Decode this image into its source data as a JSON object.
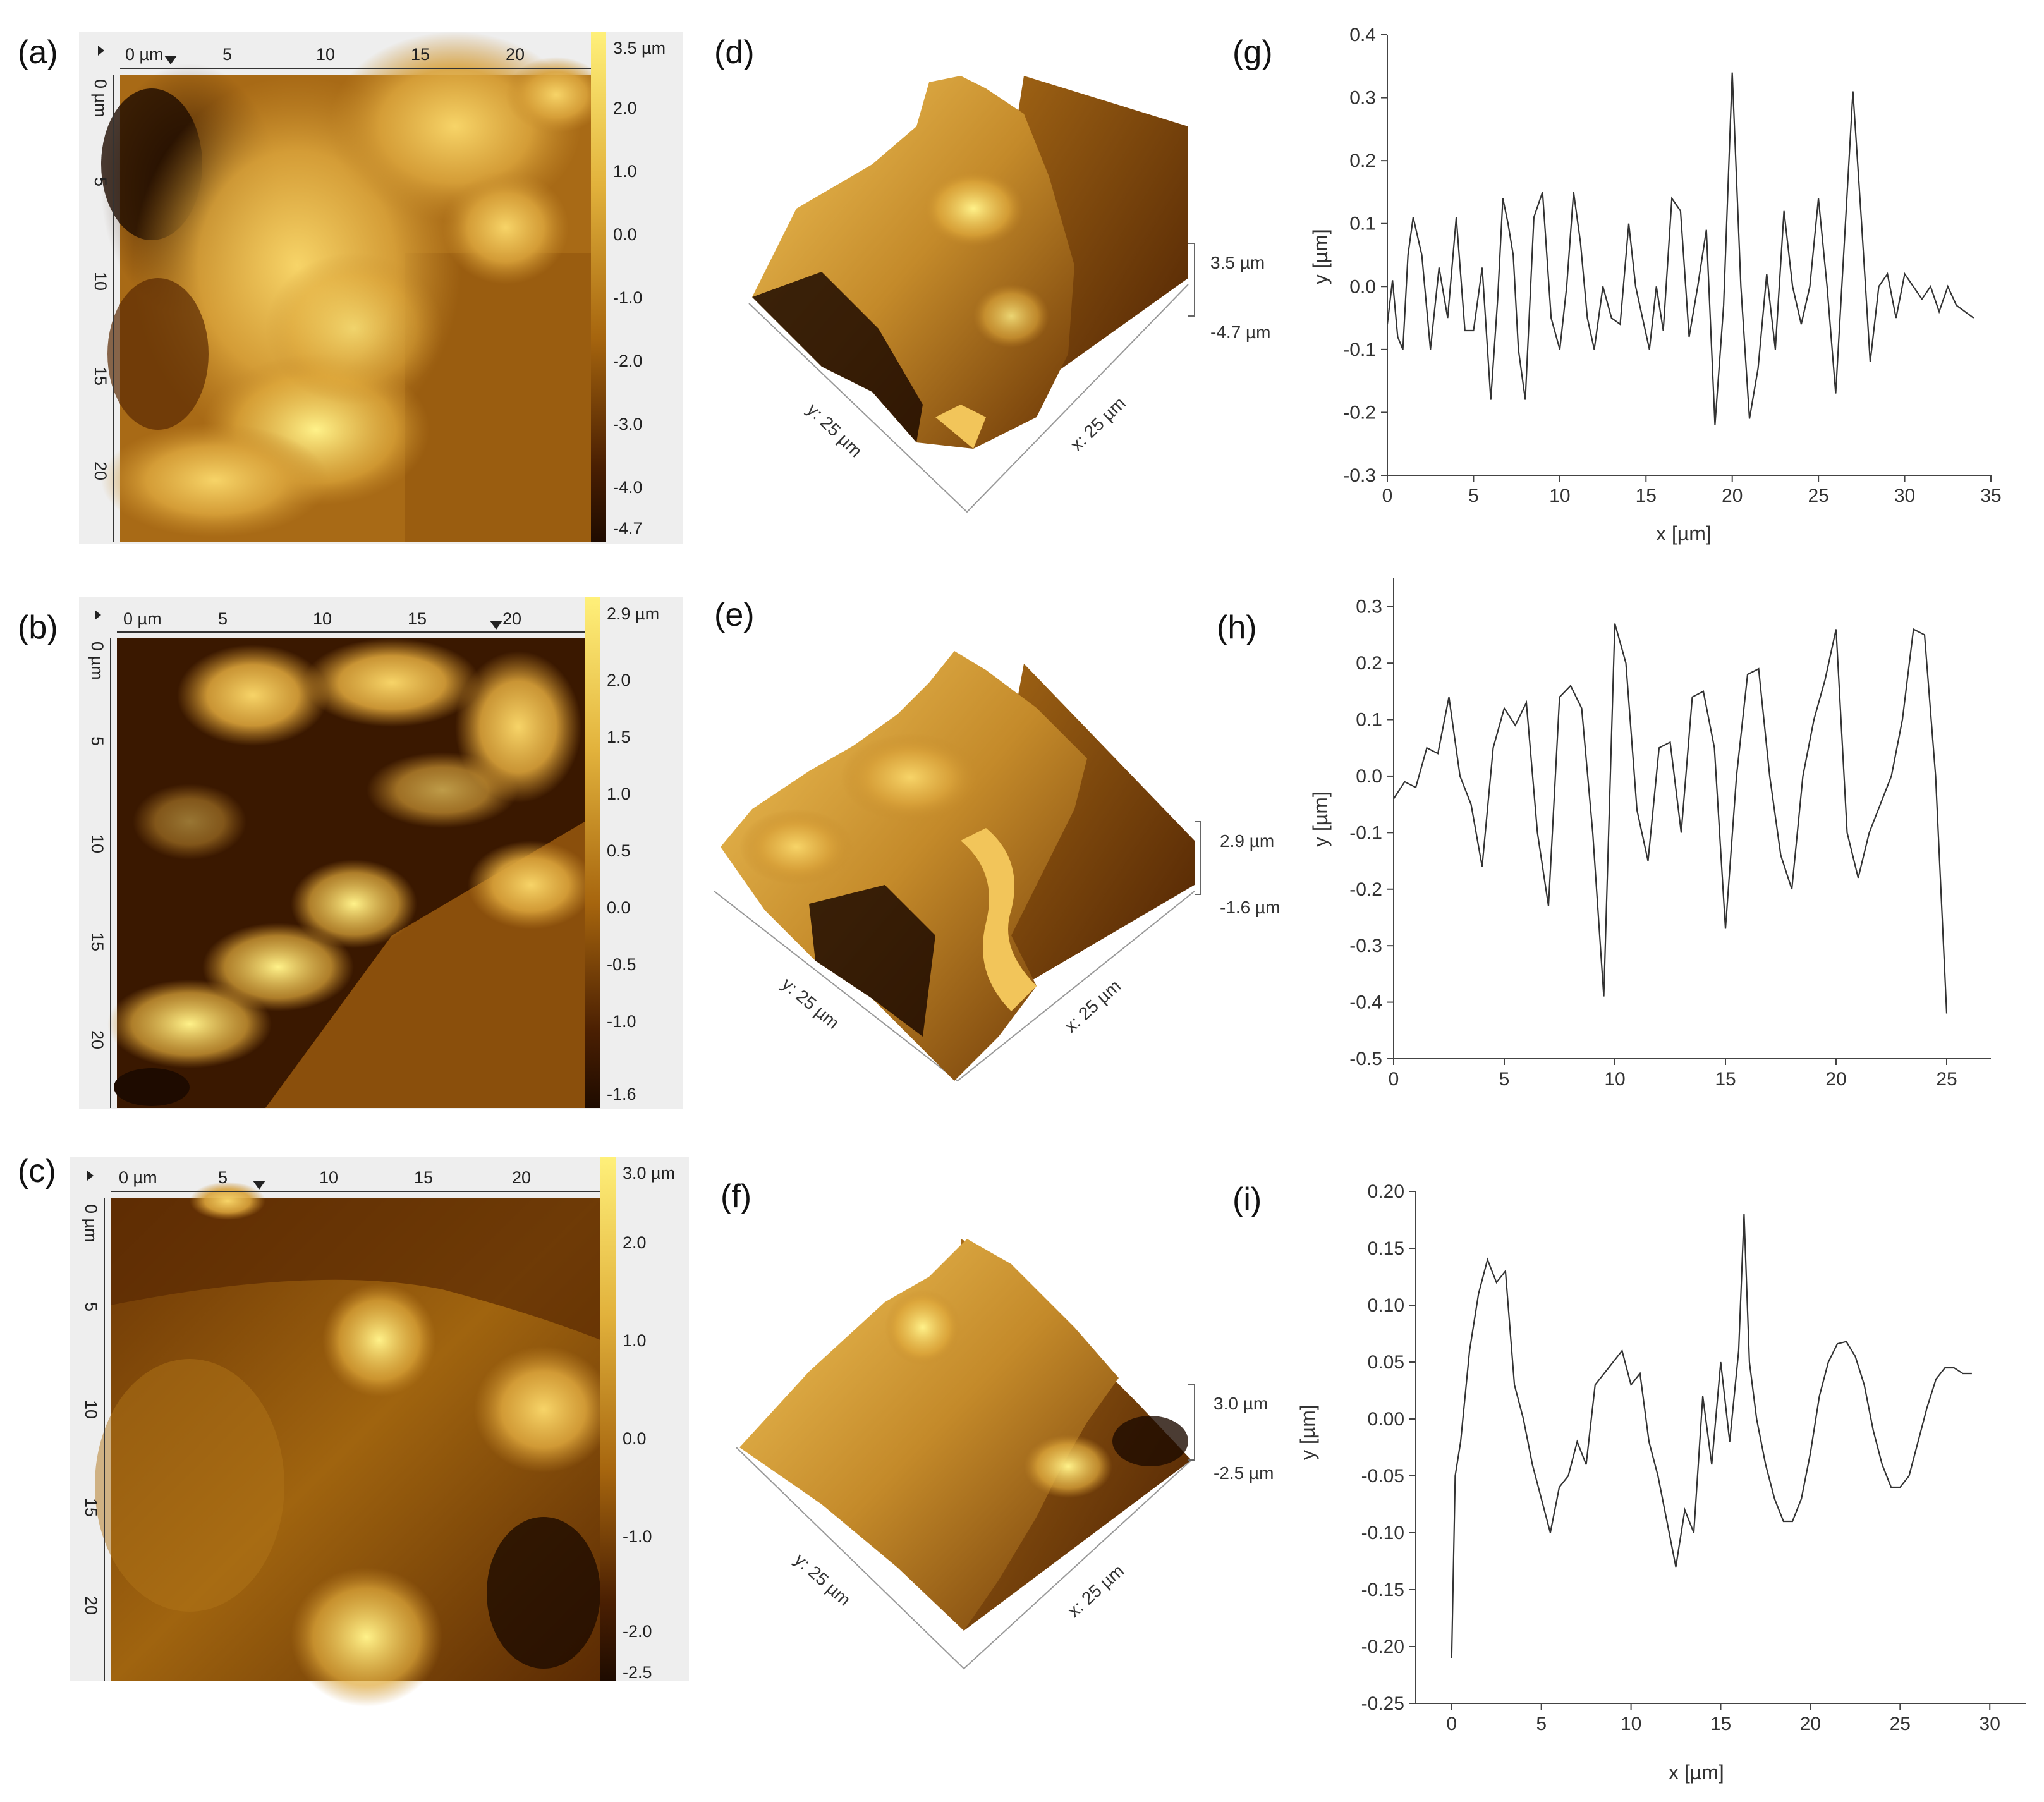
{
  "panels": [
    {
      "id": "a",
      "label": "(a)",
      "ruler_ticks": [
        "0 µm",
        "5",
        "10",
        "15",
        "20"
      ],
      "y_ticks": [
        "0 µm",
        "5",
        "10",
        "15",
        "20"
      ],
      "colorbar": [
        "3.5 µm",
        "2.0",
        "1.0",
        "0.0",
        "-1.0",
        "-2.0",
        "-3.0",
        "-4.0",
        "-4.7"
      ]
    },
    {
      "id": "b",
      "label": "(b)",
      "ruler_ticks": [
        "0 µm",
        "5",
        "10",
        "15",
        "20"
      ],
      "y_ticks": [
        "0 µm",
        "5",
        "10",
        "15",
        "20"
      ],
      "colorbar": [
        "2.9 µm",
        "2.0",
        "1.5",
        "1.0",
        "0.5",
        "0.0",
        "-0.5",
        "-1.0",
        "-1.6"
      ]
    },
    {
      "id": "c",
      "label": "(c)",
      "ruler_ticks": [
        "0 µm",
        "5",
        "10",
        "15",
        "20"
      ],
      "y_ticks": [
        "0 µm",
        "5",
        "10",
        "15",
        "20"
      ],
      "colorbar": [
        "3.0 µm",
        "2.0",
        "1.0",
        "0.0",
        "-1.0",
        "-2.0",
        "-2.5"
      ]
    }
  ],
  "surfaces": [
    {
      "id": "d",
      "label": "(d)",
      "z_max": "3.5 µm",
      "z_min": "-4.7 µm",
      "y_axis": "y: 25 µm",
      "x_axis": "x: 25 µm"
    },
    {
      "id": "e",
      "label": "(e)",
      "z_max": "2.9 µm",
      "z_min": "-1.6 µm",
      "y_axis": "y: 25 µm",
      "x_axis": "x: 25 µm"
    },
    {
      "id": "f",
      "label": "(f)",
      "z_max": "3.0 µm",
      "z_min": "-2.5 µm",
      "y_axis": "y: 25 µm",
      "x_axis": "x: 25 µm"
    }
  ],
  "profiles": [
    {
      "id": "g",
      "label": "(g)",
      "xlabel": "x [µm]",
      "ylabel": "y [µm]"
    },
    {
      "id": "h",
      "label": "(h)",
      "xlabel": "",
      "ylabel": "y [µm]"
    },
    {
      "id": "i",
      "label": "(i)",
      "xlabel": "x [µm]",
      "ylabel": "y [µm]"
    }
  ],
  "chart_data": [
    {
      "type": "line",
      "id": "g",
      "xlim": [
        0,
        35
      ],
      "ylim": [
        -0.3,
        0.4
      ],
      "xticks": [
        0,
        5,
        10,
        15,
        20,
        25,
        30,
        35
      ],
      "yticks": [
        -0.3,
        -0.2,
        -0.1,
        0.0,
        0.1,
        0.2,
        0.3,
        0.4
      ],
      "ytick_labels": [
        "-0.3",
        "-0.2",
        "-0.1",
        "0.0",
        "0.1",
        "0.2",
        "0.3",
        "0.4"
      ],
      "x": [
        0,
        0.3,
        0.6,
        0.9,
        1.2,
        1.5,
        2.0,
        2.5,
        3.0,
        3.5,
        4.0,
        4.5,
        5.0,
        5.5,
        6.0,
        6.4,
        6.7,
        7.0,
        7.3,
        7.6,
        8.0,
        8.5,
        9.0,
        9.5,
        10.0,
        10.4,
        10.8,
        11.2,
        11.6,
        12.0,
        12.5,
        13.0,
        13.5,
        14.0,
        14.4,
        14.8,
        15.2,
        15.6,
        16.0,
        16.5,
        17.0,
        17.5,
        18.0,
        18.5,
        19.0,
        19.5,
        20.0,
        20.5,
        21.0,
        21.5,
        22.0,
        22.5,
        23.0,
        23.5,
        24.0,
        24.5,
        25.0,
        25.5,
        26.0,
        26.5,
        27.0,
        27.5,
        28.0,
        28.5,
        29.0,
        29.5,
        30.0,
        30.5,
        31.0,
        31.5,
        32.0,
        32.5,
        33.0,
        33.5,
        34.0
      ],
      "y": [
        -0.06,
        0.01,
        -0.08,
        -0.1,
        0.05,
        0.11,
        0.05,
        -0.1,
        0.03,
        -0.05,
        0.11,
        -0.07,
        -0.07,
        0.03,
        -0.18,
        -0.02,
        0.14,
        0.1,
        0.05,
        -0.1,
        -0.18,
        0.11,
        0.15,
        -0.05,
        -0.1,
        0.0,
        0.15,
        0.07,
        -0.05,
        -0.1,
        0.0,
        -0.05,
        -0.06,
        0.1,
        0.0,
        -0.05,
        -0.1,
        0.0,
        -0.07,
        0.14,
        0.12,
        -0.08,
        0.0,
        0.09,
        -0.22,
        -0.03,
        0.34,
        0.0,
        -0.21,
        -0.13,
        0.02,
        -0.1,
        0.12,
        0.0,
        -0.06,
        0.0,
        0.14,
        0.0,
        -0.17,
        0.07,
        0.31,
        0.1,
        -0.12,
        0.0,
        0.02,
        -0.05,
        0.02,
        0.0,
        -0.02,
        0.0,
        -0.04,
        0.0,
        -0.03,
        -0.04,
        -0.05
      ]
    },
    {
      "type": "line",
      "id": "h",
      "xlim": [
        0,
        27
      ],
      "ylim": [
        -0.5,
        0.35
      ],
      "xticks": [
        0,
        5,
        10,
        15,
        20,
        25
      ],
      "yticks": [
        -0.5,
        -0.4,
        -0.3,
        -0.2,
        -0.1,
        0.0,
        0.1,
        0.2,
        0.3
      ],
      "ytick_labels": [
        "-0.5",
        "-0.4",
        "-0.3",
        "-0.2",
        "-0.1",
        "0.0",
        "0.1",
        "0.2",
        "0.3"
      ],
      "x": [
        0,
        0.5,
        1.0,
        1.5,
        2.0,
        2.5,
        3.0,
        3.5,
        4.0,
        4.5,
        5.0,
        5.5,
        6.0,
        6.5,
        7.0,
        7.5,
        8.0,
        8.5,
        9.0,
        9.5,
        10.0,
        10.5,
        11.0,
        11.5,
        12.0,
        12.5,
        13.0,
        13.5,
        14.0,
        14.5,
        15.0,
        15.5,
        16.0,
        16.5,
        17.0,
        17.5,
        18.0,
        18.5,
        19.0,
        19.5,
        20.0,
        20.5,
        21.0,
        21.5,
        22.0,
        22.5,
        23.0,
        23.5,
        24.0,
        24.5,
        25.0
      ],
      "y": [
        -0.04,
        -0.01,
        -0.02,
        0.05,
        0.04,
        0.14,
        0.0,
        -0.05,
        -0.16,
        0.05,
        0.12,
        0.09,
        0.13,
        -0.1,
        -0.23,
        0.14,
        0.16,
        0.12,
        -0.1,
        -0.39,
        0.27,
        0.2,
        -0.06,
        -0.15,
        0.05,
        0.06,
        -0.1,
        0.14,
        0.15,
        0.05,
        -0.27,
        0.0,
        0.18,
        0.19,
        0.0,
        -0.14,
        -0.2,
        0.0,
        0.1,
        0.17,
        0.26,
        -0.1,
        -0.18,
        -0.1,
        -0.05,
        0.0,
        0.1,
        0.26,
        0.25,
        0.0,
        -0.42
      ]
    },
    {
      "type": "line",
      "id": "i",
      "xlim": [
        -2,
        32
      ],
      "ylim": [
        -0.25,
        0.2
      ],
      "xticks": [
        0,
        5,
        10,
        15,
        20,
        25,
        30
      ],
      "yticks": [
        -0.25,
        -0.2,
        -0.15,
        -0.1,
        -0.05,
        0.0,
        0.05,
        0.1,
        0.15,
        0.2
      ],
      "ytick_labels": [
        "-0.25",
        "-0.20",
        "-0.15",
        "-0.10",
        "-0.05",
        "0.00",
        "0.05",
        "0.10",
        "0.15",
        "0.20"
      ],
      "x": [
        0,
        0.2,
        0.5,
        1.0,
        1.5,
        2.0,
        2.5,
        3.0,
        3.5,
        4.0,
        4.5,
        5.0,
        5.5,
        6.0,
        6.5,
        7.0,
        7.5,
        8.0,
        8.5,
        9.0,
        9.5,
        10.0,
        10.5,
        11.0,
        11.5,
        12.0,
        12.5,
        13.0,
        13.5,
        14.0,
        14.5,
        15.0,
        15.5,
        16.0,
        16.3,
        16.6,
        17.0,
        17.5,
        18.0,
        18.5,
        19.0,
        19.5,
        20.0,
        20.5,
        21.0,
        21.5,
        22.0,
        22.5,
        23.0,
        23.5,
        24.0,
        24.5,
        25.0,
        25.5,
        26.0,
        26.5,
        27.0,
        27.5,
        28.0,
        28.5,
        29.0
      ],
      "y": [
        -0.21,
        -0.05,
        -0.02,
        0.06,
        0.11,
        0.14,
        0.12,
        0.13,
        0.03,
        0.0,
        -0.04,
        -0.07,
        -0.1,
        -0.06,
        -0.05,
        -0.02,
        -0.04,
        0.03,
        0.04,
        0.05,
        0.06,
        0.03,
        0.04,
        -0.02,
        -0.05,
        -0.09,
        -0.13,
        -0.08,
        -0.1,
        0.02,
        -0.04,
        0.05,
        -0.02,
        0.06,
        0.18,
        0.05,
        0.0,
        -0.04,
        -0.07,
        -0.09,
        -0.09,
        -0.07,
        -0.03,
        0.02,
        0.05,
        0.066,
        0.068,
        0.055,
        0.03,
        -0.01,
        -0.04,
        -0.06,
        -0.06,
        -0.05,
        -0.02,
        0.01,
        0.035,
        0.045,
        0.045,
        0.04,
        0.04
      ]
    }
  ],
  "colors": {
    "afm_dark": "#1e0b00",
    "afm_mid": "#a6650e",
    "afm_light": "#fff07a",
    "line": "#333333"
  }
}
